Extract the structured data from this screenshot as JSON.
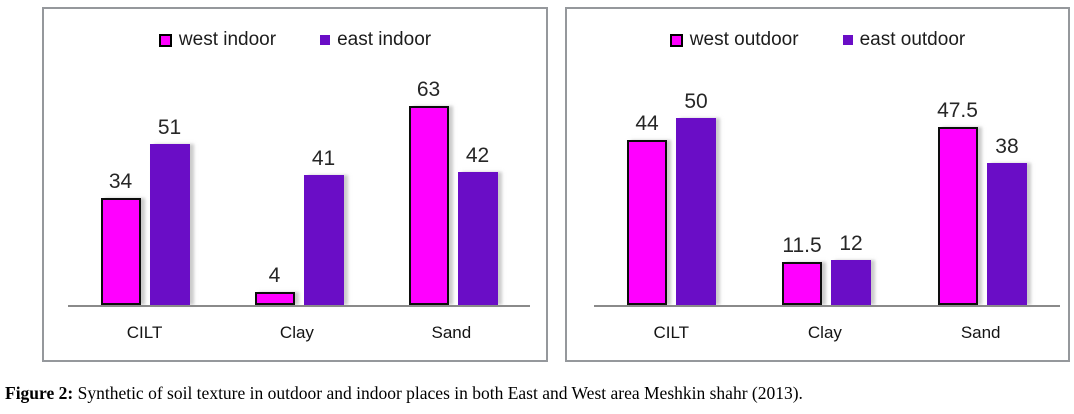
{
  "caption": {
    "label": "Figure 2:",
    "text": " Synthetic of soil texture in outdoor and indoor places in both East and West area Meshkin shahr (2013)."
  },
  "chart_data": [
    {
      "type": "bar",
      "title": "",
      "categories": [
        "CILT",
        "Clay",
        "Sand"
      ],
      "series": [
        {
          "name": "west indoor",
          "color": "#ff00ff",
          "values": [
            34,
            4,
            63
          ]
        },
        {
          "name": "east indoor",
          "color": "#6a0dc6",
          "values": [
            51,
            41,
            42
          ]
        }
      ],
      "legend_position": "top",
      "value_labels": true,
      "y_axis": "hidden",
      "ylim": [
        0,
        70
      ]
    },
    {
      "type": "bar",
      "title": "",
      "categories": [
        "CILT",
        "Clay",
        "Sand"
      ],
      "series": [
        {
          "name": "west outdoor",
          "color": "#ff00ff",
          "values": [
            44,
            11.5,
            47.5
          ]
        },
        {
          "name": "east outdoor",
          "color": "#6a0dc6",
          "values": [
            50,
            12,
            38
          ]
        }
      ],
      "legend_position": "top",
      "value_labels": true,
      "y_axis": "hidden",
      "ylim": [
        0,
        55
      ]
    }
  ]
}
